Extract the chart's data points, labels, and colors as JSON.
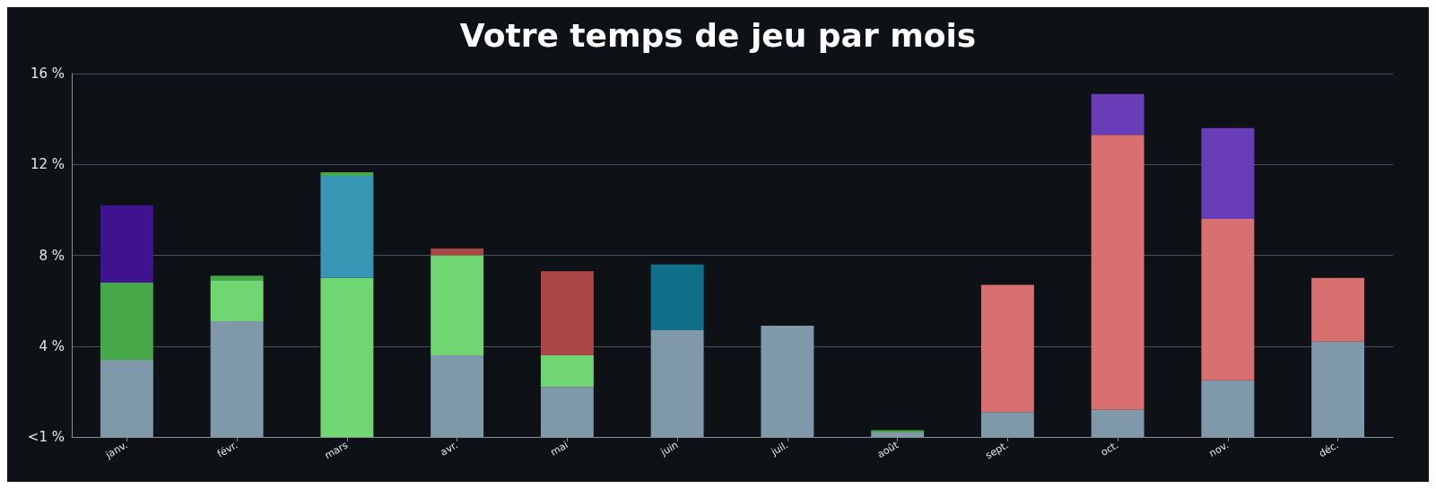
{
  "chart_data": {
    "type": "bar",
    "title": "Votre temps de jeu par mois",
    "stacked": true,
    "grid": "y",
    "categories": [
      "janv.",
      "févr.",
      "mars",
      "avr.",
      "mai",
      "juin",
      "juil.",
      "août",
      "sept.",
      "oct.",
      "nov.",
      "déc."
    ],
    "ylim": [
      0,
      16
    ],
    "yticks": [
      {
        "value": 0,
        "label": "<1 %"
      },
      {
        "value": 4,
        "label": "4 %"
      },
      {
        "value": 8,
        "label": "8 %"
      },
      {
        "value": 12,
        "label": "12 %"
      },
      {
        "value": 16,
        "label": "16 %"
      }
    ],
    "series": [
      {
        "color": "#7f98aa",
        "values": [
          3.4,
          5.1,
          null,
          3.6,
          2.2,
          4.7,
          4.9,
          0.2,
          1.1,
          1.2,
          2.5,
          4.2
        ]
      },
      {
        "color": "#6fd672",
        "values": [
          null,
          1.8,
          7.0,
          4.4,
          1.4,
          null,
          null,
          null,
          null,
          null,
          null,
          null
        ]
      },
      {
        "color": "#3797b4",
        "values": [
          null,
          null,
          4.5,
          null,
          null,
          null,
          null,
          null,
          null,
          null,
          null,
          null
        ]
      },
      {
        "color": "#10708a",
        "values": [
          null,
          null,
          null,
          null,
          null,
          2.9,
          null,
          null,
          null,
          null,
          null,
          null
        ]
      },
      {
        "color": "#46a846",
        "values": [
          3.4,
          0.2,
          0.15,
          null,
          null,
          null,
          null,
          0.1,
          null,
          null,
          null,
          null
        ]
      },
      {
        "color": "#ab4646",
        "values": [
          null,
          null,
          null,
          0.3,
          3.7,
          null,
          null,
          null,
          null,
          null,
          null,
          null
        ]
      },
      {
        "color": "#d87070",
        "values": [
          null,
          null,
          null,
          null,
          null,
          null,
          null,
          null,
          5.6,
          12.1,
          7.1,
          2.8
        ]
      },
      {
        "color": "#6a3db8",
        "values": [
          null,
          null,
          null,
          null,
          null,
          null,
          null,
          null,
          null,
          1.8,
          4.0,
          null
        ]
      },
      {
        "color": "#3f138f",
        "values": [
          3.4,
          null,
          null,
          null,
          null,
          null,
          null,
          null,
          null,
          null,
          null,
          null
        ]
      }
    ]
  }
}
